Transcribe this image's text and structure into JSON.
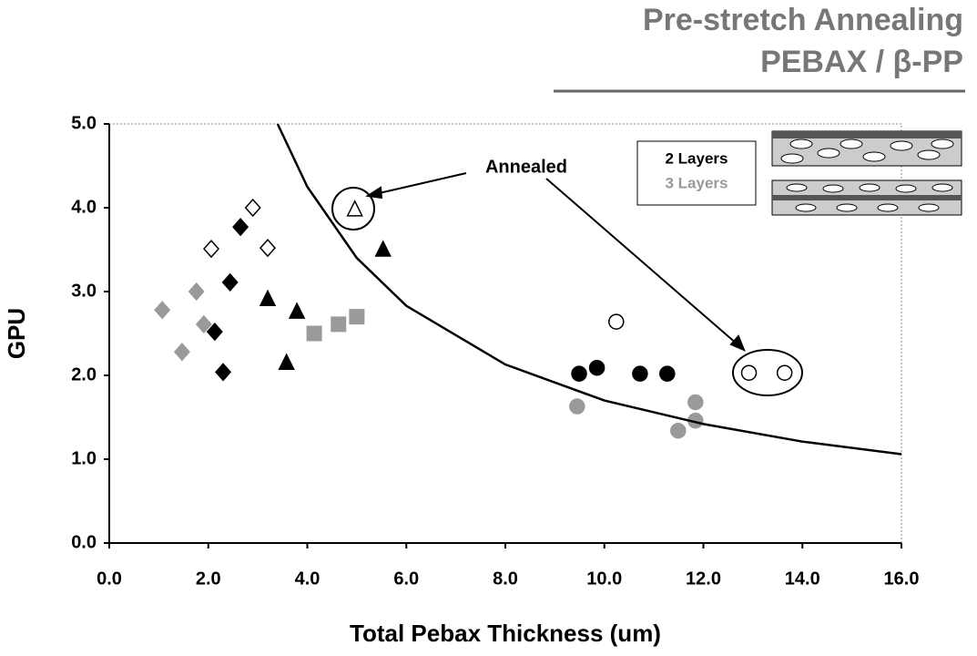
{
  "chart_data": {
    "type": "scatter",
    "title": [
      "Pre-stretch Annealing",
      "PEBAX / β-PP"
    ],
    "x_label": "Total Pebax Thickness (um)",
    "y_label": "GPU",
    "annotation": "Annealed",
    "legend": [
      "2 Layers",
      "3 Layers"
    ],
    "xlim": [
      0,
      16
    ],
    "ylim": [
      0,
      5
    ],
    "xticks": [
      {
        "value": 0,
        "label": "0.0"
      },
      {
        "value": 2,
        "label": "2.0"
      },
      {
        "value": 4,
        "label": "4.0"
      },
      {
        "value": 6,
        "label": "6.0"
      },
      {
        "value": 8,
        "label": "8.0"
      },
      {
        "value": 10,
        "label": "10.0"
      },
      {
        "value": 12,
        "label": "12.0"
      },
      {
        "value": 14,
        "label": "14.0"
      },
      {
        "value": 16,
        "label": "16.0"
      }
    ],
    "yticks": [
      {
        "value": 0,
        "label": "0.0"
      },
      {
        "value": 1,
        "label": "1.0"
      },
      {
        "value": 2,
        "label": "2.0"
      },
      {
        "value": 3,
        "label": "3.0"
      },
      {
        "value": 4,
        "label": "4.0"
      },
      {
        "value": 5,
        "label": "5.0"
      }
    ],
    "series": [
      {
        "marker": "diamond",
        "color": "#000000",
        "x": [
          2.13,
          2.3,
          2.44,
          2.65
        ],
        "values": [
          2.52,
          2.04,
          3.11,
          3.77
        ]
      },
      {
        "marker": "diamond",
        "color": "#ffffff",
        "x": [
          2.06,
          2.9,
          3.2
        ],
        "values": [
          3.51,
          4.0,
          3.52
        ]
      },
      {
        "marker": "diamond",
        "color": "#9a9a9a",
        "x": [
          1.07,
          1.47,
          1.76,
          1.91
        ],
        "values": [
          2.78,
          2.28,
          3.0,
          2.61
        ]
      },
      {
        "marker": "triangle",
        "color": "#000000",
        "x": [
          3.2,
          3.79,
          3.58,
          5.53
        ],
        "values": [
          2.91,
          2.76,
          2.15,
          3.5
        ]
      },
      {
        "marker": "triangle",
        "color": "#ffffff",
        "x": [
          4.96
        ],
        "values": [
          3.98
        ]
      },
      {
        "marker": "square",
        "color": "#9a9a9a",
        "x": [
          4.14,
          4.63,
          5.0
        ],
        "values": [
          2.5,
          2.61,
          2.7
        ]
      },
      {
        "marker": "circle",
        "color": "#000000",
        "x": [
          9.49,
          9.85,
          10.72,
          11.27
        ],
        "values": [
          2.02,
          2.09,
          2.02,
          2.02
        ]
      },
      {
        "marker": "circle",
        "color": "#ffffff",
        "x": [
          10.24,
          12.92,
          13.64
        ],
        "values": [
          2.64,
          2.03,
          2.03
        ]
      },
      {
        "marker": "circle",
        "color": "#9a9a9a",
        "x": [
          9.45,
          11.49,
          11.84,
          11.84
        ],
        "values": [
          1.63,
          1.34,
          1.68,
          1.46
        ]
      },
      {
        "marker": "line",
        "color": "#000000",
        "x": [
          3.4,
          4,
          5,
          6,
          8,
          10,
          12,
          14,
          16
        ],
        "values": [
          5.0,
          4.25,
          3.4,
          2.83,
          2.13,
          1.7,
          1.42,
          1.21,
          1.06
        ]
      }
    ]
  }
}
